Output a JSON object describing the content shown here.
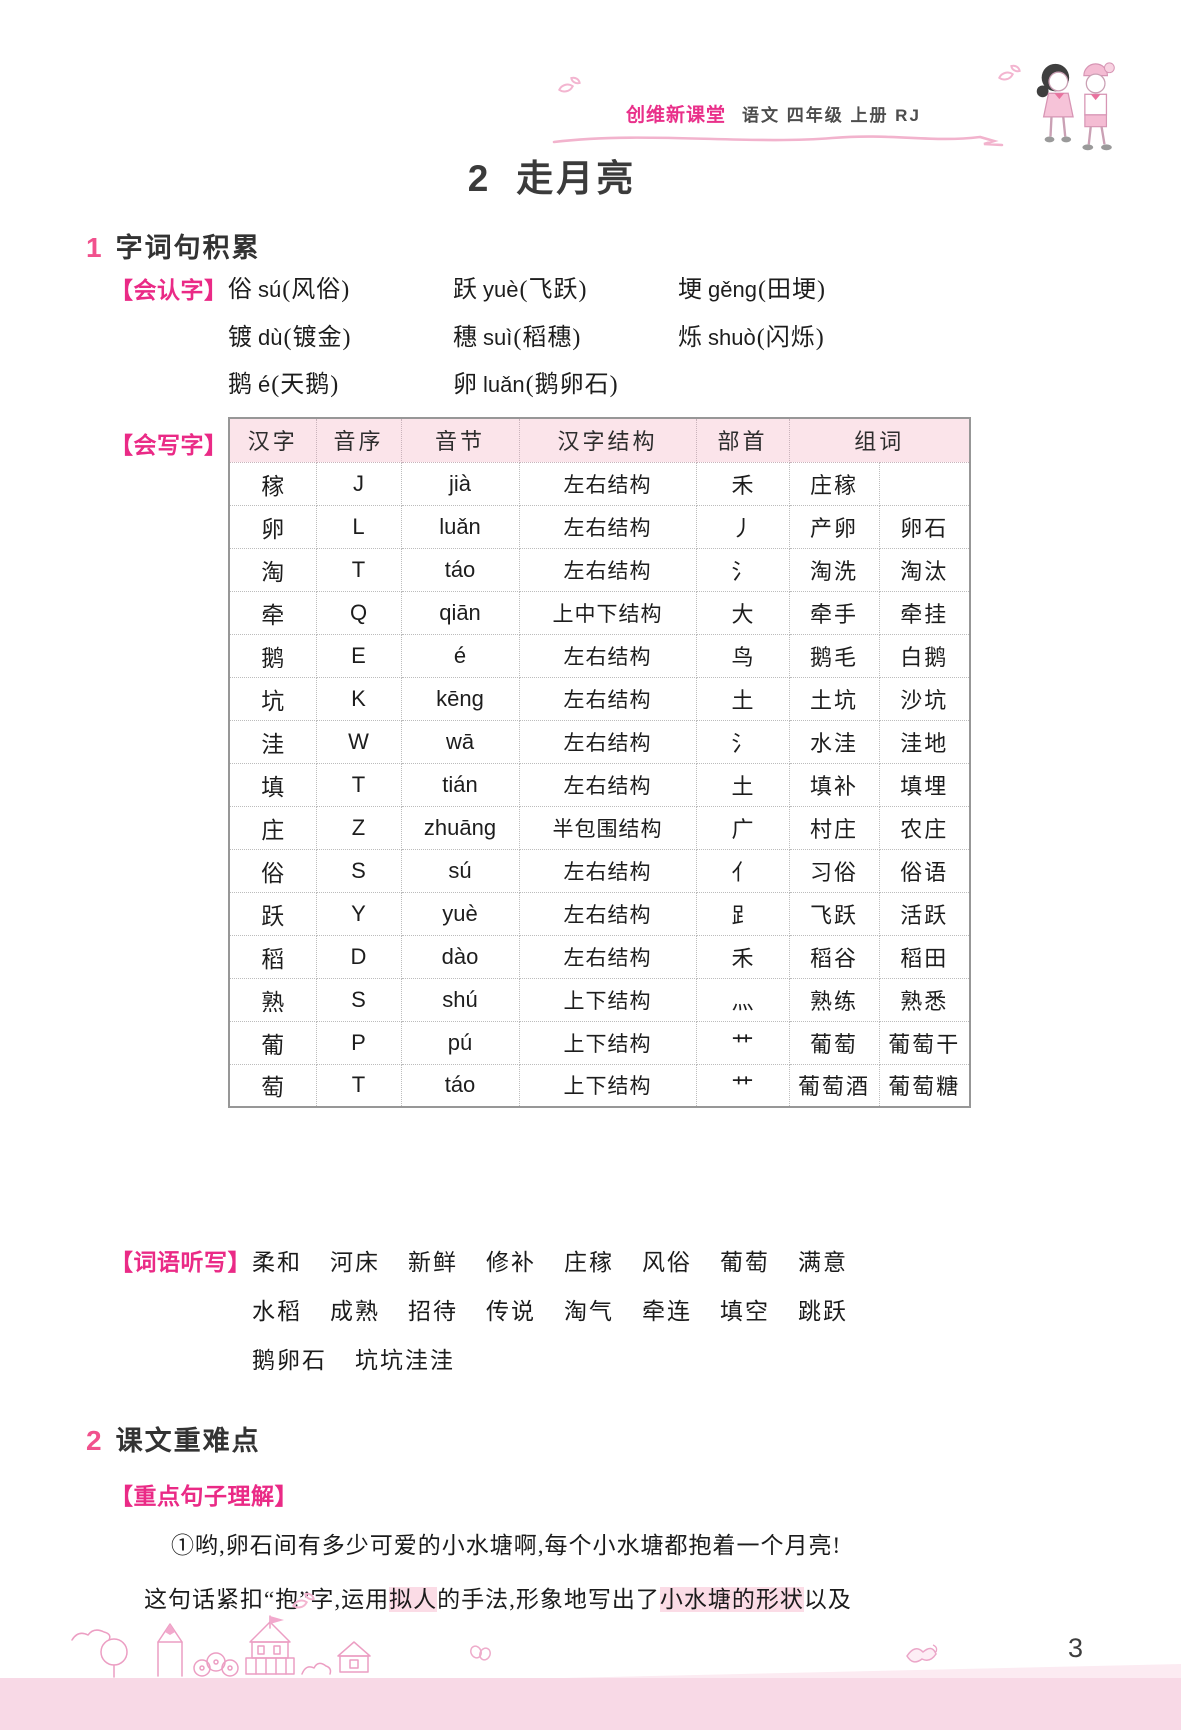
{
  "header": {
    "brand": "创维新课堂",
    "subtitle": "语文 四年级 上册 RJ"
  },
  "lesson": {
    "number": "2",
    "title": "走月亮"
  },
  "sections": {
    "one": {
      "number": "1",
      "title": "字词句积累"
    },
    "two": {
      "number": "2",
      "title": "课文重难点"
    }
  },
  "huirenzi": {
    "label": "【会认字】",
    "rows": [
      [
        {
          "hanzi": "俗",
          "pinyin": "sú",
          "word": "(风俗)"
        },
        {
          "hanzi": "跃",
          "pinyin": "yuè",
          "word": "(飞跃)"
        },
        {
          "hanzi": "埂",
          "pinyin": "gěng",
          "word": "(田埂)"
        }
      ],
      [
        {
          "hanzi": "镀",
          "pinyin": "dù",
          "word": "(镀金)"
        },
        {
          "hanzi": "穗",
          "pinyin": "suì",
          "word": "(稻穗)"
        },
        {
          "hanzi": "烁",
          "pinyin": "shuò",
          "word": "(闪烁)"
        }
      ],
      [
        {
          "hanzi": "鹅",
          "pinyin": "é",
          "word": "(天鹅)"
        },
        {
          "hanzi": "卵",
          "pinyin": "luǎn",
          "word": "(鹅卵石)"
        }
      ]
    ]
  },
  "huixiezi": {
    "label": "【会写字】",
    "table": {
      "headers": [
        "汉字",
        "音序",
        "音节",
        "汉字结构",
        "部首",
        "组词"
      ],
      "rows": [
        [
          "稼",
          "J",
          "jià",
          "左右结构",
          "禾",
          "庄稼",
          ""
        ],
        [
          "卵",
          "L",
          "luǎn",
          "左右结构",
          "丿",
          "产卵",
          "卵石"
        ],
        [
          "淘",
          "T",
          "táo",
          "左右结构",
          "氵",
          "淘洗",
          "淘汰"
        ],
        [
          "牵",
          "Q",
          "qiān",
          "上中下结构",
          "大",
          "牵手",
          "牵挂"
        ],
        [
          "鹅",
          "E",
          "é",
          "左右结构",
          "鸟",
          "鹅毛",
          "白鹅"
        ],
        [
          "坑",
          "K",
          "kēng",
          "左右结构",
          "土",
          "土坑",
          "沙坑"
        ],
        [
          "洼",
          "W",
          "wā",
          "左右结构",
          "氵",
          "水洼",
          "洼地"
        ],
        [
          "填",
          "T",
          "tián",
          "左右结构",
          "土",
          "填补",
          "填埋"
        ],
        [
          "庄",
          "Z",
          "zhuāng",
          "半包围结构",
          "广",
          "村庄",
          "农庄"
        ],
        [
          "俗",
          "S",
          "sú",
          "左右结构",
          "亻",
          "习俗",
          "俗语"
        ],
        [
          "跃",
          "Y",
          "yuè",
          "左右结构",
          "⻊",
          "飞跃",
          "活跃"
        ],
        [
          "稻",
          "D",
          "dào",
          "左右结构",
          "禾",
          "稻谷",
          "稻田"
        ],
        [
          "熟",
          "S",
          "shú",
          "上下结构",
          "灬",
          "熟练",
          "熟悉"
        ],
        [
          "葡",
          "P",
          "pú",
          "上下结构",
          "艹",
          "葡萄",
          "葡萄干"
        ],
        [
          "萄",
          "T",
          "táo",
          "上下结构",
          "艹",
          "葡萄酒",
          "葡萄糖"
        ]
      ]
    }
  },
  "tingxie": {
    "label": "【词语听写】",
    "lines": [
      [
        "柔和",
        "河床",
        "新鲜",
        "修补",
        "庄稼",
        "风俗",
        "葡萄",
        "满意"
      ],
      [
        "水稻",
        "成熟",
        "招待",
        "传说",
        "淘气",
        "牵连",
        "填空",
        "跳跃"
      ],
      [
        "鹅卵石",
        "坑坑洼洼"
      ]
    ]
  },
  "zhongdian": {
    "label": "【重点句子理解】",
    "sentence": "①哟,卵石间有多少可爱的小水塘啊,每个小水塘都抱着一个月亮!",
    "analysis_segments": [
      {
        "text": "这句话紧扣“抱”字,运用",
        "highlight": false
      },
      {
        "text": "拟人",
        "highlight": true
      },
      {
        "text": "的手法,形象地写出了",
        "highlight": false
      },
      {
        "text": "小水塘的形状",
        "highlight": true
      },
      {
        "text": "以及",
        "highlight": false
      }
    ]
  },
  "footer": {
    "page_number": "3"
  },
  "colors": {
    "accent_pink": "#ea2a86",
    "section_number_pink": "#f1518d",
    "table_header_bg": "#fbe4ea",
    "footer_band": "#f8d9e6",
    "highlight": "#fbdce6"
  }
}
